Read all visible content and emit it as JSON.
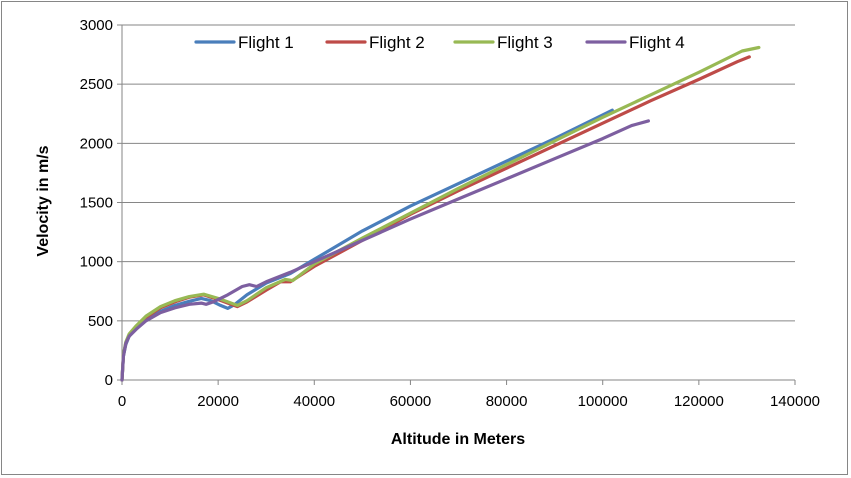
{
  "chart_data": {
    "type": "line",
    "title": "",
    "xlabel": "Altitude in Meters",
    "ylabel": "Velocity in m/s",
    "xlim": [
      0,
      140000
    ],
    "ylim": [
      0,
      3000
    ],
    "xticks": [
      0,
      20000,
      40000,
      60000,
      80000,
      100000,
      120000,
      140000
    ],
    "yticks": [
      0,
      500,
      1000,
      1500,
      2000,
      2500,
      3000
    ],
    "grid": "horizontal",
    "legend_position": "top",
    "series": [
      {
        "name": "Flight 1",
        "color": "#4a7ebb",
        "x": [
          0,
          300,
          800,
          1500,
          3000,
          5000,
          8000,
          11000,
          14000,
          16500,
          18500,
          20500,
          22000,
          23500,
          26000,
          30000,
          35000,
          40000,
          50000,
          60000,
          70000,
          80000,
          90000,
          100000,
          102000
        ],
        "y": [
          0,
          200,
          300,
          370,
          440,
          510,
          580,
          630,
          665,
          690,
          670,
          630,
          605,
          640,
          720,
          820,
          900,
          1020,
          1260,
          1470,
          1660,
          1850,
          2040,
          2240,
          2280
        ]
      },
      {
        "name": "Flight 2",
        "color": "#be4b48",
        "x": [
          0,
          300,
          800,
          1500,
          3000,
          5000,
          8000,
          11000,
          14000,
          17000,
          20000,
          22000,
          24000,
          26000,
          30000,
          33000,
          35000,
          40000,
          50000,
          60000,
          70000,
          80000,
          90000,
          100000,
          110000,
          120000,
          128000,
          130500
        ],
        "y": [
          0,
          210,
          310,
          380,
          450,
          530,
          610,
          660,
          700,
          720,
          680,
          650,
          620,
          660,
          760,
          830,
          830,
          960,
          1180,
          1400,
          1600,
          1790,
          1980,
          2170,
          2360,
          2540,
          2690,
          2730
        ]
      },
      {
        "name": "Flight 3",
        "color": "#98b954",
        "x": [
          0,
          300,
          800,
          1500,
          3000,
          5000,
          8000,
          11000,
          14000,
          17000,
          20000,
          22000,
          24000,
          26000,
          30000,
          34000,
          35500,
          40000,
          50000,
          60000,
          70000,
          80000,
          90000,
          100000,
          110000,
          120000,
          129000,
          132500
        ],
        "y": [
          0,
          215,
          320,
          390,
          460,
          540,
          620,
          670,
          705,
          725,
          690,
          660,
          630,
          670,
          780,
          850,
          840,
          980,
          1200,
          1410,
          1620,
          1820,
          2020,
          2220,
          2410,
          2600,
          2780,
          2810
        ]
      },
      {
        "name": "Flight 4",
        "color": "#7d5fa0",
        "x": [
          0,
          300,
          800,
          1500,
          3000,
          5000,
          8000,
          11000,
          14000,
          16500,
          17500,
          19000,
          22000,
          25000,
          26500,
          28000,
          30000,
          35000,
          40000,
          50000,
          60000,
          70000,
          80000,
          90000,
          100000,
          106000,
          109500
        ],
        "y": [
          0,
          200,
          310,
          370,
          430,
          500,
          570,
          610,
          640,
          650,
          640,
          660,
          720,
          790,
          805,
          790,
          830,
          910,
          1000,
          1180,
          1360,
          1530,
          1700,
          1870,
          2040,
          2150,
          2190
        ]
      }
    ]
  }
}
